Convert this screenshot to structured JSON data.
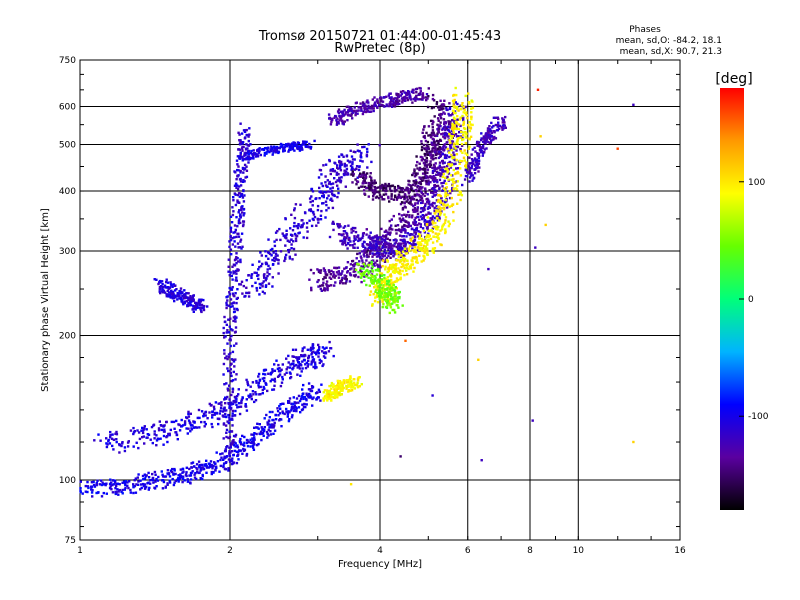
{
  "title_line1": "Tromsø 20150721 01:44:00-01:45:43",
  "title_line2": "RwPretec (8p)",
  "phase_box": {
    "heading": "Phases",
    "line1": "mean, sd,O: -84.2, 18.1",
    "line2": "mean, sd,X:  90.7, 21.3"
  },
  "chart_data": {
    "type": "scatter",
    "xlabel": "Frequency [MHz]",
    "ylabel": "Stationary phase Virtual Height [km]",
    "x_scale": "log",
    "y_scale": "log",
    "xlim": [
      1,
      16
    ],
    "ylim": [
      75,
      750
    ],
    "x_ticks": [
      1,
      2,
      4,
      6,
      8,
      10,
      16
    ],
    "x_tick_labels": [
      "1",
      "2",
      "4",
      "6",
      "8",
      "10",
      "16"
    ],
    "y_ticks": [
      75,
      100,
      200,
      300,
      400,
      500,
      600,
      750
    ],
    "y_tick_labels": [
      "75",
      "100",
      "200",
      "300",
      "400",
      "500",
      "600",
      "750"
    ],
    "grid": true,
    "colorbar": {
      "unit_label": "[deg]",
      "range": [
        -180,
        180
      ],
      "ticks": [
        100,
        0,
        -100
      ],
      "tick_labels": [
        "100",
        "0",
        "-100"
      ],
      "colors": [
        "#000000",
        "#5a00a0",
        "#0000ff",
        "#00b4ff",
        "#00ff7a",
        "#66ff00",
        "#ffff00",
        "#ff9900",
        "#ff0000"
      ]
    },
    "traces": [
      {
        "segments": [
          [
            1.0,
            95
          ],
          [
            1.3,
            98
          ],
          [
            1.6,
            102
          ],
          [
            1.9,
            108
          ],
          [
            2.2,
            120
          ],
          [
            2.6,
            140
          ],
          [
            3.0,
            155
          ]
        ],
        "phase": -100,
        "spread": 0.04
      },
      {
        "segments": [
          [
            1.1,
            118
          ],
          [
            1.5,
            126
          ],
          [
            1.9,
            138
          ],
          [
            2.3,
            158
          ],
          [
            2.8,
            178
          ],
          [
            3.1,
            185
          ]
        ],
        "phase": -105,
        "spread": 0.05
      },
      {
        "segments": [
          [
            2.0,
            110
          ],
          [
            2.0,
            200
          ],
          [
            2.05,
            300
          ],
          [
            2.1,
            420
          ],
          [
            2.15,
            540
          ]
        ],
        "phase": -110,
        "spread": 0.03
      },
      {
        "segments": [
          [
            2.2,
            250
          ],
          [
            2.5,
            300
          ],
          [
            2.9,
            360
          ],
          [
            3.3,
            440
          ],
          [
            3.8,
            480
          ]
        ],
        "phase": -110,
        "spread": 0.06
      },
      {
        "segments": [
          [
            2.1,
            470
          ],
          [
            2.5,
            490
          ],
          [
            2.9,
            500
          ]
        ],
        "phase": -100,
        "spread": 0.02
      },
      {
        "segments": [
          [
            1.45,
            255
          ],
          [
            1.6,
            240
          ],
          [
            1.75,
            230
          ]
        ],
        "phase": -108,
        "spread": 0.03
      },
      {
        "segments": [
          [
            3.0,
            260
          ],
          [
            3.5,
            270
          ],
          [
            4.0,
            300
          ],
          [
            4.5,
            350
          ],
          [
            5.0,
            420
          ],
          [
            5.3,
            500
          ],
          [
            5.5,
            580
          ]
        ],
        "phase": -135,
        "spread": 0.05
      },
      {
        "segments": [
          [
            3.3,
            330
          ],
          [
            3.8,
            310
          ],
          [
            4.3,
            300
          ],
          [
            4.8,
            330
          ],
          [
            5.2,
            380
          ],
          [
            5.5,
            460
          ],
          [
            5.7,
            600
          ]
        ],
        "phase": -120,
        "spread": 0.05
      },
      {
        "segments": [
          [
            3.6,
            430
          ],
          [
            4.0,
            400
          ],
          [
            4.6,
            390
          ],
          [
            5.0,
            470
          ],
          [
            5.2,
            620
          ]
        ],
        "phase": -148,
        "spread": 0.04
      },
      {
        "segments": [
          [
            4.0,
            240
          ],
          [
            4.2,
            270
          ],
          [
            4.6,
            290
          ],
          [
            5.1,
            320
          ],
          [
            5.6,
            400
          ],
          [
            5.8,
            520
          ],
          [
            5.9,
            630
          ]
        ],
        "phase": 95,
        "spread": 0.05
      },
      {
        "segments": [
          [
            3.7,
            280
          ],
          [
            4.1,
            250
          ],
          [
            4.3,
            230
          ]
        ],
        "phase": 45,
        "spread": 0.04
      },
      {
        "segments": [
          [
            3.15,
            150
          ],
          [
            3.3,
            155
          ],
          [
            3.6,
            160
          ]
        ],
        "phase": 95,
        "spread": 0.03
      },
      {
        "segments": [
          [
            6.0,
            420
          ],
          [
            6.4,
            500
          ],
          [
            7.0,
            560
          ]
        ],
        "phase": -120,
        "spread": 0.03
      },
      {
        "segments": [
          [
            3.2,
            560
          ],
          [
            3.7,
            600
          ],
          [
            4.3,
            620
          ],
          [
            4.9,
            640
          ]
        ],
        "phase": -130,
        "spread": 0.03
      }
    ],
    "scattered_points": [
      [
        8.3,
        650,
        170
      ],
      [
        8.6,
        340,
        110
      ],
      [
        8.2,
        305,
        -120
      ],
      [
        8.1,
        133,
        -120
      ],
      [
        6.4,
        110,
        -120
      ],
      [
        6.6,
        275,
        -120
      ],
      [
        6.3,
        178,
        110
      ],
      [
        4.5,
        195,
        150
      ],
      [
        4.4,
        112,
        -150
      ],
      [
        5.1,
        150,
        -110
      ],
      [
        12.0,
        490,
        160
      ],
      [
        12.9,
        120,
        110
      ],
      [
        12.9,
        605,
        -120
      ],
      [
        8.4,
        520,
        110
      ],
      [
        3.5,
        98,
        100
      ]
    ]
  }
}
